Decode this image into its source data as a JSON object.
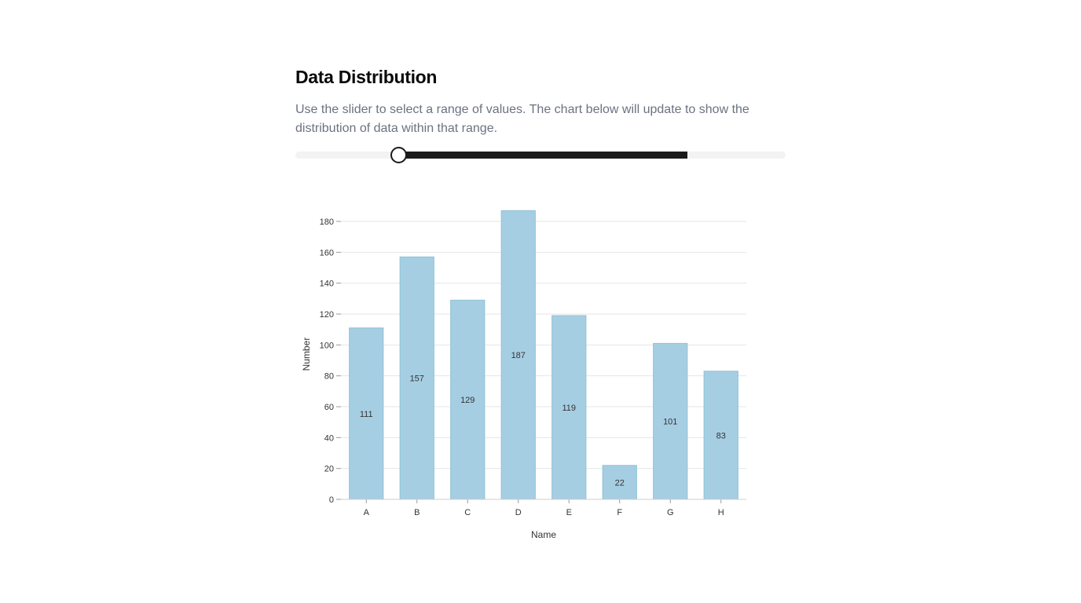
{
  "page": {
    "title": "Data Distribution",
    "description": "Use the slider to select a range of values. The chart below will update to show the distribution of data within that range."
  },
  "slider": {
    "min_fraction": 0.21,
    "max_fraction": 0.8,
    "track_color": "#f3f3f3",
    "range_color": "#1a1a1a"
  },
  "chart_data": {
    "type": "bar",
    "categories": [
      "A",
      "B",
      "C",
      "D",
      "E",
      "F",
      "G",
      "H"
    ],
    "values": [
      111,
      157,
      129,
      187,
      119,
      22,
      101,
      83
    ],
    "xlabel": "Name",
    "ylabel": "Number",
    "ylim": [
      0,
      180
    ],
    "yticks": [
      0,
      20,
      40,
      60,
      80,
      100,
      120,
      140,
      160,
      180
    ],
    "grid": true,
    "bar_color": "#a6cee3",
    "bar_value_labels": true
  }
}
